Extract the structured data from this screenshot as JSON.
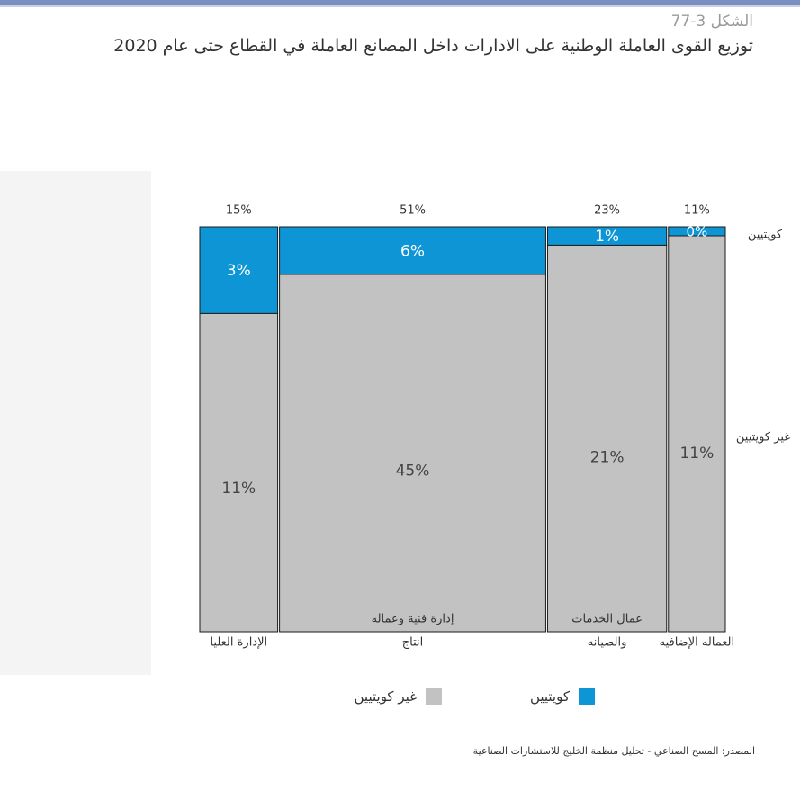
{
  "figure": {
    "number": "الشكل 3-77",
    "title": "توزيع القوى العاملة الوطنية على الادارات داخل المصانع العاملة في القطاع حتى عام 2020",
    "source": "المصدر: المسح الصناعي - تحليل منظمة الخليج للاستشارات الصناعية"
  },
  "colors": {
    "kuwaiti": "#0d95d6",
    "non_kuwaiti": "#c2c2c2",
    "border": "#1a1a1a"
  },
  "chart_data": {
    "type": "bar",
    "subtype": "mekko",
    "categories": [
      {
        "name": "الإدارة العليا",
        "name_lines": [
          "الإدارة العليا"
        ],
        "inner_label": "",
        "total": "15%",
        "width_share": 15
      },
      {
        "name": "إدارة فنية وعماله انتاج",
        "name_lines": [
          "انتاج"
        ],
        "inner_label": "إدارة فنية وعماله",
        "total": "51%",
        "width_share": 51
      },
      {
        "name": "عمال الخدمات والصيانه",
        "name_lines": [
          "والصيانه"
        ],
        "inner_label": "عمال الخدمات",
        "total": "23%",
        "width_share": 23
      },
      {
        "name": "العماله الإضافية",
        "name_lines": [
          "العماله الإضافيه"
        ],
        "inner_label": "",
        "total": "11%",
        "width_share": 11
      }
    ],
    "series": [
      {
        "name": "كويتيين",
        "color": "#0d95d6",
        "values": [
          3,
          6,
          1,
          0
        ],
        "labels": [
          "3%",
          "6%",
          "1%",
          "0%"
        ]
      },
      {
        "name": "غير كويتيين",
        "color": "#c2c2c2",
        "values": [
          11,
          45,
          21,
          11
        ],
        "labels": [
          "11%",
          "45%",
          "21%",
          "11%"
        ]
      }
    ],
    "row_labels": [
      "كويتيين",
      "غير كويتيين"
    ],
    "legend": [
      {
        "name": "كويتيين",
        "color": "#0d95d6"
      },
      {
        "name": "غير كويتيين",
        "color": "#c2c2c2"
      }
    ],
    "legend_position": "bottom"
  }
}
